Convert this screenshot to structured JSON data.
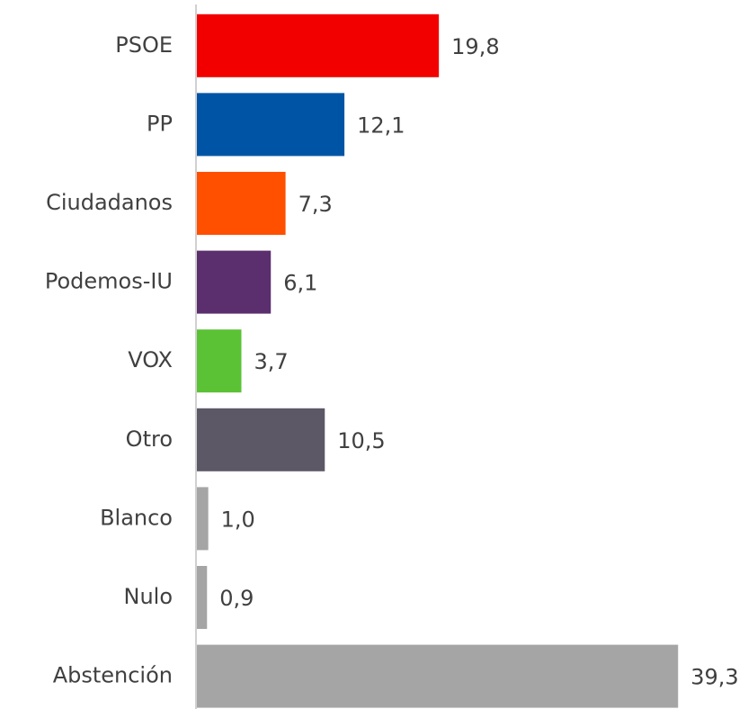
{
  "chart_data": {
    "type": "bar",
    "orientation": "horizontal",
    "categories": [
      "PSOE",
      "PP",
      "Ciudadanos",
      "Podemos-IU",
      "VOX",
      "Otro",
      "Blanco",
      "Nulo",
      "Abstención"
    ],
    "values": [
      19.8,
      12.1,
      7.3,
      6.1,
      3.7,
      10.5,
      1.0,
      0.9,
      39.3
    ],
    "value_labels": [
      "19,8",
      "12,1",
      "7,3",
      "6,1",
      "3,7",
      "10,5",
      "1,0",
      "0,9",
      "39,3"
    ],
    "colors": [
      "#f20000",
      "#0054a5",
      "#ff5000",
      "#5b2e6e",
      "#5ac234",
      "#5d5866",
      "#a5a5a5",
      "#a5a5a5",
      "#a5a5a5"
    ],
    "xlim": [
      0,
      45
    ]
  }
}
